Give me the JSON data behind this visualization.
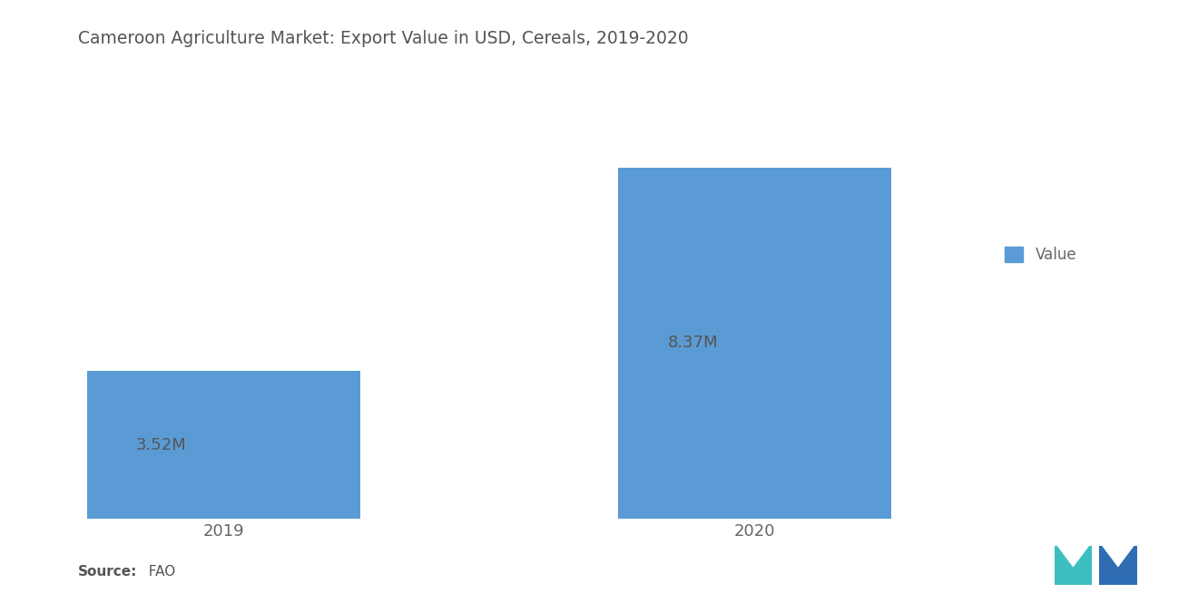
{
  "title": "Cameroon Agriculture Market: Export Value in USD, Cereals, 2019-2020",
  "categories": [
    "2019",
    "2020"
  ],
  "values": [
    3.52,
    8.37
  ],
  "labels": [
    "3.52M",
    "8.37M"
  ],
  "bar_color": "#5B9BD5",
  "background_color": "#ffffff",
  "title_fontsize": 13.5,
  "label_fontsize": 13,
  "tick_fontsize": 13,
  "legend_label": "Value",
  "source_bold": "Source:",
  "source_normal": "  FAO",
  "ylim": [
    0,
    10.5
  ],
  "bar_width": 0.72,
  "x_positions": [
    0.3,
    1.7
  ],
  "legend_color": "#5B9BD5",
  "logo_teal": "#3DBFBF",
  "logo_blue": "#2E6DB4",
  "label_color": "#555555"
}
